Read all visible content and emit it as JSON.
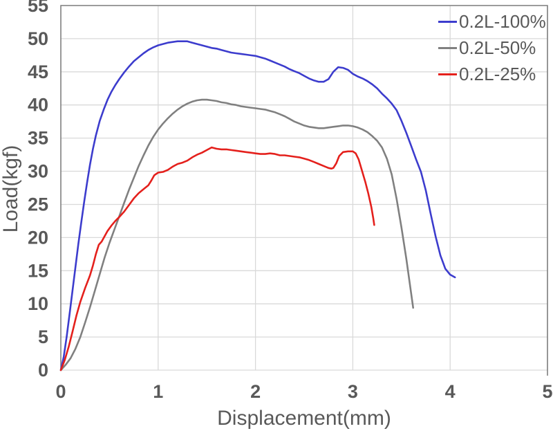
{
  "chart_data": {
    "type": "line",
    "title": "",
    "xlabel": "Displacement(mm)",
    "ylabel": "Load(kgf)",
    "xlim": [
      0,
      5
    ],
    "ylim": [
      0,
      55
    ],
    "x_ticks": [
      0,
      1,
      2,
      3,
      4,
      5
    ],
    "y_ticks": [
      0,
      5,
      10,
      15,
      20,
      25,
      30,
      35,
      40,
      45,
      50,
      55
    ],
    "grid": true,
    "legend_position": "top-right-inside",
    "colors": {
      "gridline": "#d9d9d9",
      "border": "#7f7f7f",
      "axis_text": "#595959",
      "bottom_axis": "#d9d9d9"
    },
    "series": [
      {
        "name": "0.2L-100%",
        "color": "#3c3ccd",
        "points": [
          [
            0,
            0
          ],
          [
            0.03,
            2
          ],
          [
            0.06,
            5
          ],
          [
            0.09,
            8.5
          ],
          [
            0.12,
            12
          ],
          [
            0.15,
            15.5
          ],
          [
            0.18,
            19
          ],
          [
            0.21,
            22.3
          ],
          [
            0.24,
            25.4
          ],
          [
            0.27,
            28.3
          ],
          [
            0.3,
            31
          ],
          [
            0.33,
            33.4
          ],
          [
            0.36,
            35.4
          ],
          [
            0.4,
            37.6
          ],
          [
            0.44,
            39.3
          ],
          [
            0.48,
            40.8
          ],
          [
            0.52,
            42
          ],
          [
            0.56,
            43
          ],
          [
            0.6,
            43.9
          ],
          [
            0.65,
            44.9
          ],
          [
            0.7,
            45.8
          ],
          [
            0.75,
            46.6
          ],
          [
            0.8,
            47.2
          ],
          [
            0.85,
            47.8
          ],
          [
            0.9,
            48.3
          ],
          [
            0.95,
            48.7
          ],
          [
            1,
            49
          ],
          [
            1.05,
            49.2
          ],
          [
            1.1,
            49.4
          ],
          [
            1.15,
            49.5
          ],
          [
            1.2,
            49.6
          ],
          [
            1.3,
            49.6
          ],
          [
            1.35,
            49.4
          ],
          [
            1.4,
            49.2
          ],
          [
            1.45,
            49
          ],
          [
            1.5,
            48.8
          ],
          [
            1.55,
            48.6
          ],
          [
            1.6,
            48.5
          ],
          [
            1.65,
            48.3
          ],
          [
            1.7,
            48.1
          ],
          [
            1.75,
            47.9
          ],
          [
            1.8,
            47.8
          ],
          [
            1.85,
            47.7
          ],
          [
            1.9,
            47.6
          ],
          [
            1.95,
            47.5
          ],
          [
            2,
            47.4
          ],
          [
            2.05,
            47.2
          ],
          [
            2.1,
            47
          ],
          [
            2.15,
            46.7
          ],
          [
            2.2,
            46.4
          ],
          [
            2.25,
            46.1
          ],
          [
            2.3,
            45.8
          ],
          [
            2.35,
            45.4
          ],
          [
            2.4,
            45.1
          ],
          [
            2.45,
            44.8
          ],
          [
            2.5,
            44.4
          ],
          [
            2.55,
            44
          ],
          [
            2.6,
            43.7
          ],
          [
            2.65,
            43.5
          ],
          [
            2.7,
            43.5
          ],
          [
            2.75,
            43.9
          ],
          [
            2.8,
            45
          ],
          [
            2.85,
            45.7
          ],
          [
            2.9,
            45.6
          ],
          [
            2.95,
            45.3
          ],
          [
            3,
            44.7
          ],
          [
            3.05,
            44.3
          ],
          [
            3.1,
            44
          ],
          [
            3.15,
            43.6
          ],
          [
            3.2,
            43.1
          ],
          [
            3.25,
            42.5
          ],
          [
            3.3,
            41.7
          ],
          [
            3.35,
            41
          ],
          [
            3.4,
            40.2
          ],
          [
            3.45,
            39.2
          ],
          [
            3.5,
            37.6
          ],
          [
            3.55,
            35.8
          ],
          [
            3.6,
            33.8
          ],
          [
            3.65,
            31.8
          ],
          [
            3.7,
            29.9
          ],
          [
            3.75,
            27.1
          ],
          [
            3.8,
            23.6
          ],
          [
            3.85,
            20.2
          ],
          [
            3.9,
            17.3
          ],
          [
            3.95,
            15.3
          ],
          [
            4,
            14.4
          ],
          [
            4.05,
            14
          ]
        ]
      },
      {
        "name": "0.2L-50%",
        "color": "#808080",
        "points": [
          [
            0,
            0
          ],
          [
            0.05,
            0.8
          ],
          [
            0.1,
            1.8
          ],
          [
            0.15,
            3.2
          ],
          [
            0.2,
            5
          ],
          [
            0.25,
            7.2
          ],
          [
            0.3,
            9.5
          ],
          [
            0.35,
            12
          ],
          [
            0.4,
            14.5
          ],
          [
            0.45,
            17
          ],
          [
            0.5,
            19.2
          ],
          [
            0.55,
            21.2
          ],
          [
            0.6,
            23.2
          ],
          [
            0.65,
            25.2
          ],
          [
            0.7,
            27.2
          ],
          [
            0.75,
            29
          ],
          [
            0.8,
            30.8
          ],
          [
            0.85,
            32.4
          ],
          [
            0.9,
            33.9
          ],
          [
            0.95,
            35.2
          ],
          [
            1,
            36.3
          ],
          [
            1.05,
            37.2
          ],
          [
            1.1,
            38
          ],
          [
            1.15,
            38.7
          ],
          [
            1.2,
            39.3
          ],
          [
            1.25,
            39.8
          ],
          [
            1.3,
            40.2
          ],
          [
            1.35,
            40.5
          ],
          [
            1.4,
            40.7
          ],
          [
            1.45,
            40.8
          ],
          [
            1.5,
            40.8
          ],
          [
            1.55,
            40.7
          ],
          [
            1.6,
            40.6
          ],
          [
            1.65,
            40.4
          ],
          [
            1.7,
            40.3
          ],
          [
            1.75,
            40.1
          ],
          [
            1.8,
            40
          ],
          [
            1.85,
            39.8
          ],
          [
            1.9,
            39.7
          ],
          [
            1.95,
            39.6
          ],
          [
            2,
            39.5
          ],
          [
            2.05,
            39.4
          ],
          [
            2.1,
            39.3
          ],
          [
            2.15,
            39.1
          ],
          [
            2.2,
            38.9
          ],
          [
            2.25,
            38.6
          ],
          [
            2.3,
            38.3
          ],
          [
            2.35,
            37.9
          ],
          [
            2.4,
            37.5
          ],
          [
            2.45,
            37.2
          ],
          [
            2.5,
            36.9
          ],
          [
            2.55,
            36.7
          ],
          [
            2.6,
            36.6
          ],
          [
            2.65,
            36.5
          ],
          [
            2.7,
            36.5
          ],
          [
            2.75,
            36.6
          ],
          [
            2.8,
            36.7
          ],
          [
            2.85,
            36.8
          ],
          [
            2.9,
            36.9
          ],
          [
            2.95,
            36.9
          ],
          [
            3,
            36.8
          ],
          [
            3.05,
            36.6
          ],
          [
            3.1,
            36.3
          ],
          [
            3.15,
            35.9
          ],
          [
            3.2,
            35.3
          ],
          [
            3.25,
            34.6
          ],
          [
            3.3,
            33.6
          ],
          [
            3.35,
            31.9
          ],
          [
            3.4,
            29.5
          ],
          [
            3.45,
            25.8
          ],
          [
            3.5,
            21.5
          ],
          [
            3.55,
            16.8
          ],
          [
            3.6,
            11.5
          ],
          [
            3.62,
            9.4
          ]
        ]
      },
      {
        "name": "0.2L-25%",
        "color": "#e4201c",
        "points": [
          [
            0,
            0
          ],
          [
            0.04,
            1.5
          ],
          [
            0.08,
            3.5
          ],
          [
            0.12,
            5.8
          ],
          [
            0.16,
            8.2
          ],
          [
            0.2,
            10.3
          ],
          [
            0.25,
            12.4
          ],
          [
            0.3,
            14.3
          ],
          [
            0.33,
            15.8
          ],
          [
            0.36,
            17.5
          ],
          [
            0.39,
            18.9
          ],
          [
            0.42,
            19.4
          ],
          [
            0.45,
            20.2
          ],
          [
            0.48,
            21
          ],
          [
            0.52,
            21.8
          ],
          [
            0.56,
            22.5
          ],
          [
            0.6,
            23.1
          ],
          [
            0.65,
            23.9
          ],
          [
            0.7,
            24.9
          ],
          [
            0.75,
            25.9
          ],
          [
            0.8,
            26.7
          ],
          [
            0.85,
            27.3
          ],
          [
            0.9,
            27.9
          ],
          [
            0.93,
            28.6
          ],
          [
            0.96,
            29.4
          ],
          [
            1,
            29.8
          ],
          [
            1.05,
            29.9
          ],
          [
            1.1,
            30.2
          ],
          [
            1.15,
            30.7
          ],
          [
            1.2,
            31.1
          ],
          [
            1.25,
            31.3
          ],
          [
            1.3,
            31.6
          ],
          [
            1.35,
            32.1
          ],
          [
            1.4,
            32.5
          ],
          [
            1.45,
            32.8
          ],
          [
            1.5,
            33.2
          ],
          [
            1.55,
            33.6
          ],
          [
            1.6,
            33.4
          ],
          [
            1.65,
            33.3
          ],
          [
            1.7,
            33.3
          ],
          [
            1.75,
            33.2
          ],
          [
            1.8,
            33.1
          ],
          [
            1.85,
            33
          ],
          [
            1.9,
            32.9
          ],
          [
            1.95,
            32.8
          ],
          [
            2,
            32.7
          ],
          [
            2.05,
            32.6
          ],
          [
            2.1,
            32.6
          ],
          [
            2.15,
            32.7
          ],
          [
            2.2,
            32.6
          ],
          [
            2.25,
            32.4
          ],
          [
            2.3,
            32.4
          ],
          [
            2.35,
            32.3
          ],
          [
            2.4,
            32.2
          ],
          [
            2.45,
            32.1
          ],
          [
            2.5,
            31.9
          ],
          [
            2.55,
            31.7
          ],
          [
            2.6,
            31.4
          ],
          [
            2.65,
            31.1
          ],
          [
            2.7,
            30.8
          ],
          [
            2.75,
            30.5
          ],
          [
            2.78,
            30.4
          ],
          [
            2.8,
            30.5
          ],
          [
            2.83,
            31.2
          ],
          [
            2.86,
            32.3
          ],
          [
            2.9,
            32.9
          ],
          [
            2.95,
            33
          ],
          [
            3,
            33
          ],
          [
            3.03,
            32.7
          ],
          [
            3.06,
            31.8
          ],
          [
            3.1,
            29.8
          ],
          [
            3.13,
            28.3
          ],
          [
            3.16,
            26.6
          ],
          [
            3.19,
            24.6
          ],
          [
            3.21,
            22.9
          ],
          [
            3.22,
            21.9
          ]
        ]
      }
    ]
  }
}
